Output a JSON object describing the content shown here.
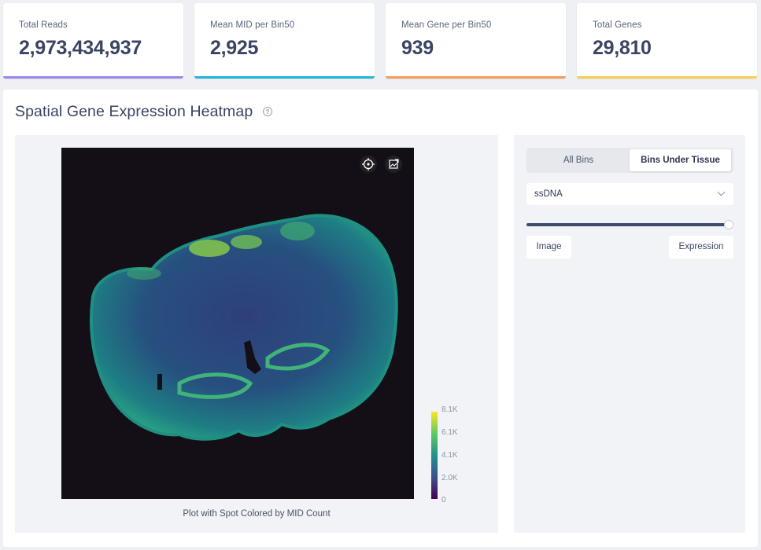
{
  "stats": [
    {
      "label": "Total Reads",
      "value": "2,973,434,937",
      "color": "#9b86e8"
    },
    {
      "label": "Mean MID per Bin50",
      "value": "2,925",
      "color": "#21b4d9"
    },
    {
      "label": "Mean Gene per Bin50",
      "value": "939",
      "color": "#f59a5b"
    },
    {
      "label": "Total Genes",
      "value": "29,810",
      "color": "#f7cc55"
    }
  ],
  "section": {
    "title": "Spatial Gene Expression Heatmap",
    "help": "?"
  },
  "plot": {
    "caption": "Plot with Spot Colored by MID Count",
    "colorbar_ticks": [
      "8.1K",
      "6.1K",
      "4.1K",
      "2.0K",
      "0"
    ],
    "toolbar": [
      "locate-icon",
      "image-export-icon"
    ]
  },
  "controls": {
    "tabs": [
      "All Bins",
      "Bins Under Tissue"
    ],
    "active_tab": "Bins Under Tissue",
    "select_value": "ssDNA",
    "blend_level": 1.0,
    "image_label": "Image",
    "expression_label": "Expression"
  }
}
